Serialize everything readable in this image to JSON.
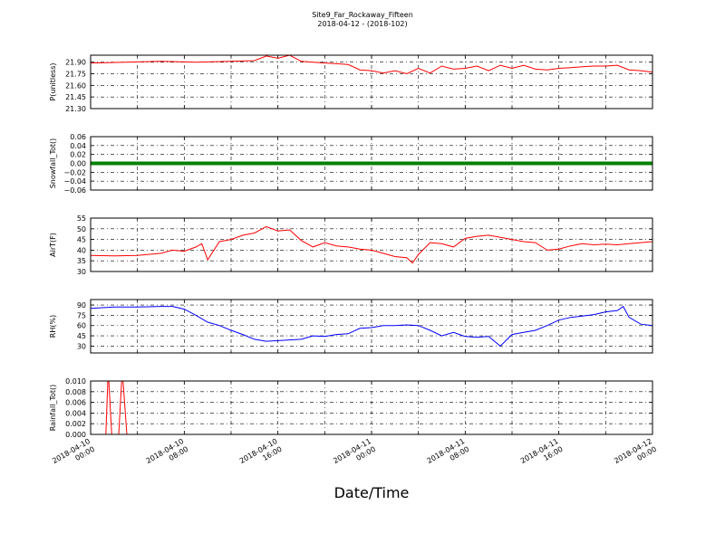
{
  "figure": {
    "title_line1": "Site9_Far_Rockaway_Fifteen",
    "title_line2": "2018-04-12 - (2018-102)",
    "xlabel": "Date/Time"
  },
  "chart_data": [
    {
      "type": "line",
      "ylabel": "P(unitless)",
      "ylim": [
        21.3,
        21.99
      ],
      "yticks": [
        "21.30",
        "21.45",
        "21.60",
        "21.75",
        "21.90"
      ],
      "ytick_values": [
        21.3,
        21.45,
        21.6,
        21.75,
        21.9
      ],
      "grid": true,
      "color": "#ff0000",
      "x_hours": [
        0,
        3,
        6,
        9,
        12,
        14,
        15,
        16,
        17,
        18,
        19,
        20,
        21,
        22,
        23,
        24,
        25,
        26,
        27,
        28,
        29,
        30,
        31,
        32,
        33,
        34,
        35,
        36,
        37,
        38,
        39,
        40,
        41,
        42,
        43,
        44,
        45,
        46,
        47,
        48
      ],
      "y": [
        21.89,
        21.9,
        21.91,
        21.9,
        21.91,
        21.92,
        21.98,
        21.95,
        21.99,
        21.91,
        21.9,
        21.89,
        21.88,
        21.87,
        21.8,
        21.79,
        21.76,
        21.79,
        21.75,
        21.82,
        21.76,
        21.85,
        21.81,
        21.82,
        21.85,
        21.79,
        21.86,
        21.82,
        21.86,
        21.81,
        21.8,
        21.82,
        21.83,
        21.84,
        21.85,
        21.85,
        21.86,
        21.8,
        21.79,
        21.77
      ]
    },
    {
      "type": "line",
      "ylabel": "Snowfall_Tot()",
      "ylim": [
        -0.06,
        0.06
      ],
      "yticks": [
        "−0.06",
        "−0.04",
        "−0.02",
        "0.00",
        "0.02",
        "0.04",
        "0.06"
      ],
      "ytick_values": [
        -0.06,
        -0.04,
        -0.02,
        0,
        0.02,
        0.04,
        0.06
      ],
      "grid": true,
      "color": "#008000",
      "x_hours": [
        0,
        48
      ],
      "y": [
        0,
        0
      ]
    },
    {
      "type": "line",
      "ylabel": "AirT(F)",
      "ylim": [
        30,
        55
      ],
      "yticks": [
        "30",
        "35",
        "40",
        "45",
        "50",
        "55"
      ],
      "ytick_values": [
        30,
        35,
        40,
        45,
        50,
        55
      ],
      "grid": true,
      "color": "#ff0000",
      "x_hours": [
        0,
        2,
        4,
        6,
        7,
        8,
        9,
        9.5,
        10,
        11,
        12,
        13,
        14,
        15,
        16,
        17,
        18,
        19,
        20,
        21,
        22,
        23,
        24,
        25,
        26,
        27,
        27.5,
        28,
        29,
        30,
        31,
        32,
        33,
        34,
        35,
        36,
        37,
        38,
        39,
        40,
        41,
        42,
        43,
        44,
        45,
        46,
        47,
        48
      ],
      "y": [
        37.5,
        37.3,
        37.5,
        38.5,
        40,
        39.5,
        41.5,
        43,
        35.5,
        44,
        45,
        47,
        48,
        51,
        49,
        49.5,
        44.5,
        41.5,
        43.5,
        42,
        41.5,
        40.5,
        40,
        38.5,
        37,
        36.5,
        34,
        38,
        43.5,
        43,
        41.5,
        45.5,
        46.5,
        47,
        46,
        45,
        44,
        43.5,
        40,
        40.5,
        42,
        43,
        42.5,
        42.8,
        42.5,
        43,
        43.5,
        44
      ]
    },
    {
      "type": "line",
      "ylabel": "RH(%)",
      "ylim": [
        20,
        98
      ],
      "yticks": [
        "30",
        "45",
        "60",
        "75",
        "90"
      ],
      "ytick_values": [
        30,
        45,
        60,
        75,
        90
      ],
      "grid": true,
      "color": "#0000ff",
      "x_hours": [
        0,
        2,
        4,
        6,
        7,
        8,
        9,
        10,
        11,
        12,
        13,
        14,
        15,
        16,
        17,
        18,
        19,
        20,
        21,
        22,
        23,
        24,
        25,
        26,
        27,
        28,
        29,
        30,
        31,
        32,
        33,
        34,
        35,
        36,
        37,
        38,
        39,
        40,
        41,
        42,
        43,
        44,
        45,
        45.5,
        46,
        47,
        48
      ],
      "y": [
        85,
        87,
        87,
        88,
        88,
        84,
        75,
        65,
        60,
        53,
        47,
        40,
        37,
        38,
        39,
        40,
        45,
        44,
        47,
        48,
        56,
        57,
        60,
        60,
        61,
        60,
        53,
        45,
        50,
        44,
        43,
        44,
        30,
        47,
        50,
        53,
        60,
        68,
        72,
        74,
        76,
        80,
        82,
        88,
        72,
        62,
        60
      ]
    },
    {
      "type": "line",
      "ylabel": "Rainfall_Tot()",
      "ylim": [
        0,
        0.01
      ],
      "yticks": [
        "0.000",
        "0.002",
        "0.004",
        "0.006",
        "0.008",
        "0.010"
      ],
      "ytick_values": [
        0,
        0.002,
        0.004,
        0.006,
        0.008,
        0.01
      ],
      "grid": true,
      "color": "#ff0000",
      "x_hours": [
        0,
        1.3,
        1.5,
        1.8,
        2.4,
        2.7,
        3.1,
        48
      ],
      "y": [
        0,
        0,
        0.012,
        0,
        0,
        0.012,
        0,
        0
      ]
    }
  ],
  "x_axis": {
    "ticks": [
      {
        "h": 0,
        "line1": "2018-04-10",
        "line2": "00:00"
      },
      {
        "h": 8,
        "line1": "2018-04-10",
        "line2": "08:00"
      },
      {
        "h": 16,
        "line1": "2018-04-10",
        "line2": "16:00"
      },
      {
        "h": 24,
        "line1": "2018-04-11",
        "line2": "00:00"
      },
      {
        "h": 32,
        "line1": "2018-04-11",
        "line2": "08:00"
      },
      {
        "h": 40,
        "line1": "2018-04-11",
        "line2": "16:00"
      },
      {
        "h": 48,
        "line1": "2018-04-12",
        "line2": "00:00"
      }
    ]
  }
}
